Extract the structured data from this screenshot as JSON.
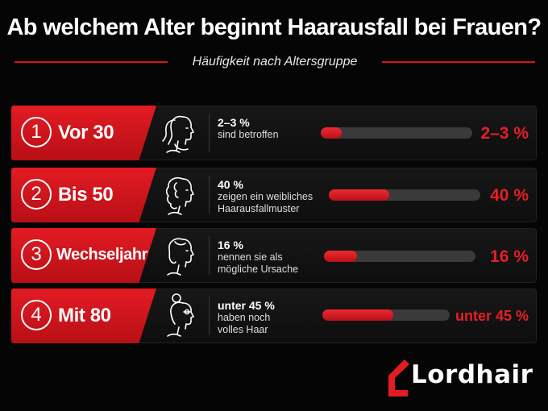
{
  "title": "Ab welchem Alter beginnt Haarausfall bei Frauen?",
  "subtitle": "Häufigkeit nach Altersgruppe",
  "accent_color": "#e31b23",
  "items": [
    {
      "number": "1",
      "label": "Vor 30",
      "icon": "woman-ponytail-profile-icon",
      "pct": "2–3 %",
      "lines": [
        "sind betroffen"
      ],
      "bar_fraction": 0.14,
      "value": "2–3 %"
    },
    {
      "number": "2",
      "label": "Bis 50",
      "icon": "woman-curly-hair-profile-icon",
      "pct": "40 %",
      "lines": [
        "zeigen ein weibliches",
        "Haarausfallmuster"
      ],
      "bar_fraction": 0.4,
      "value": "40 %"
    },
    {
      "number": "3",
      "label": "Wechseljahre",
      "icon": "woman-short-hair-profile-icon",
      "pct": "16 %",
      "lines": [
        "nennen sie als",
        "mögliche Ursache"
      ],
      "bar_fraction": 0.22,
      "value": "16 %"
    },
    {
      "number": "4",
      "label": "Mit 80",
      "icon": "older-woman-bun-profile-icon",
      "pct": "unter 45 %",
      "lines": [
        "haben noch",
        "volles Haar"
      ],
      "bar_fraction": 0.56,
      "value": "unter 45 %"
    }
  ],
  "logo": {
    "text": "Lordhair",
    "icon": "lordhair-logo-icon"
  }
}
